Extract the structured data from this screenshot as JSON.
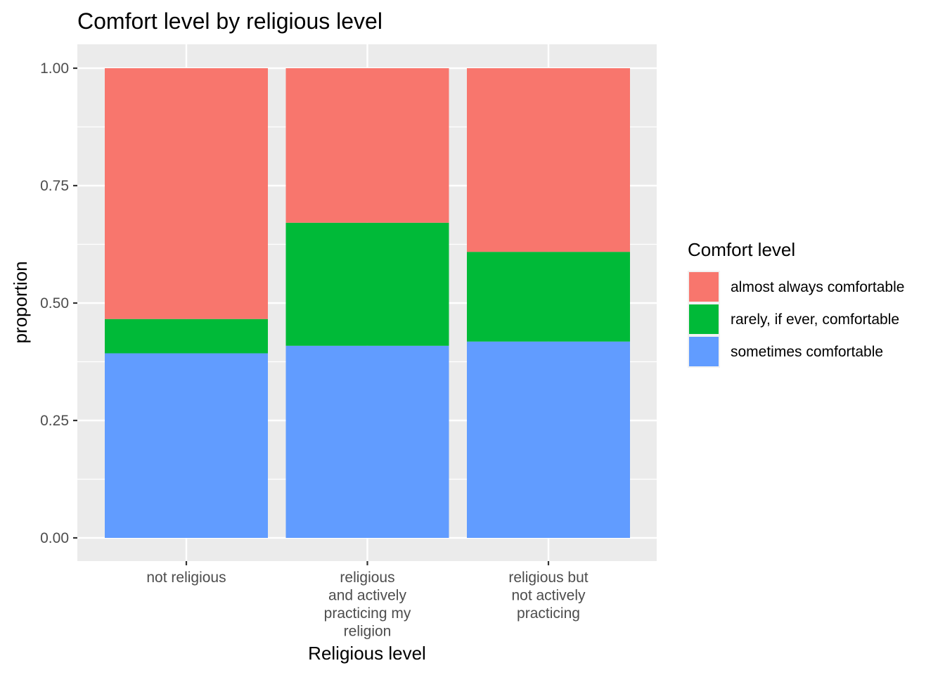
{
  "chart_data": {
    "type": "bar",
    "stacked": true,
    "title": "Comfort level by religious level",
    "xlabel": "Religious level",
    "ylabel": "proportion",
    "ylim": [
      0,
      1
    ],
    "yticks": [
      "0.00",
      "0.25",
      "0.50",
      "0.75",
      "1.00"
    ],
    "categories": [
      [
        "not religious"
      ],
      [
        "religious",
        "and actively",
        "practicing my",
        "religion"
      ],
      [
        "religious but",
        "not actively",
        "practicing"
      ]
    ],
    "series": [
      {
        "name": "sometimes comfortable",
        "color": "#619CFF",
        "values": [
          0.393,
          0.409,
          0.418
        ]
      },
      {
        "name": "rarely, if ever, comfortable",
        "color": "#00BA38",
        "values": [
          0.073,
          0.262,
          0.191
        ]
      },
      {
        "name": "almost always comfortable",
        "color": "#F8766D",
        "values": [
          0.534,
          0.329,
          0.391
        ]
      }
    ],
    "legend": {
      "title": "Comfort level",
      "position": "right",
      "order": [
        "almost always comfortable",
        "rarely, if ever, comfortable",
        "sometimes comfortable"
      ]
    },
    "grid": true,
    "panel_background": "#EBEBEB"
  }
}
